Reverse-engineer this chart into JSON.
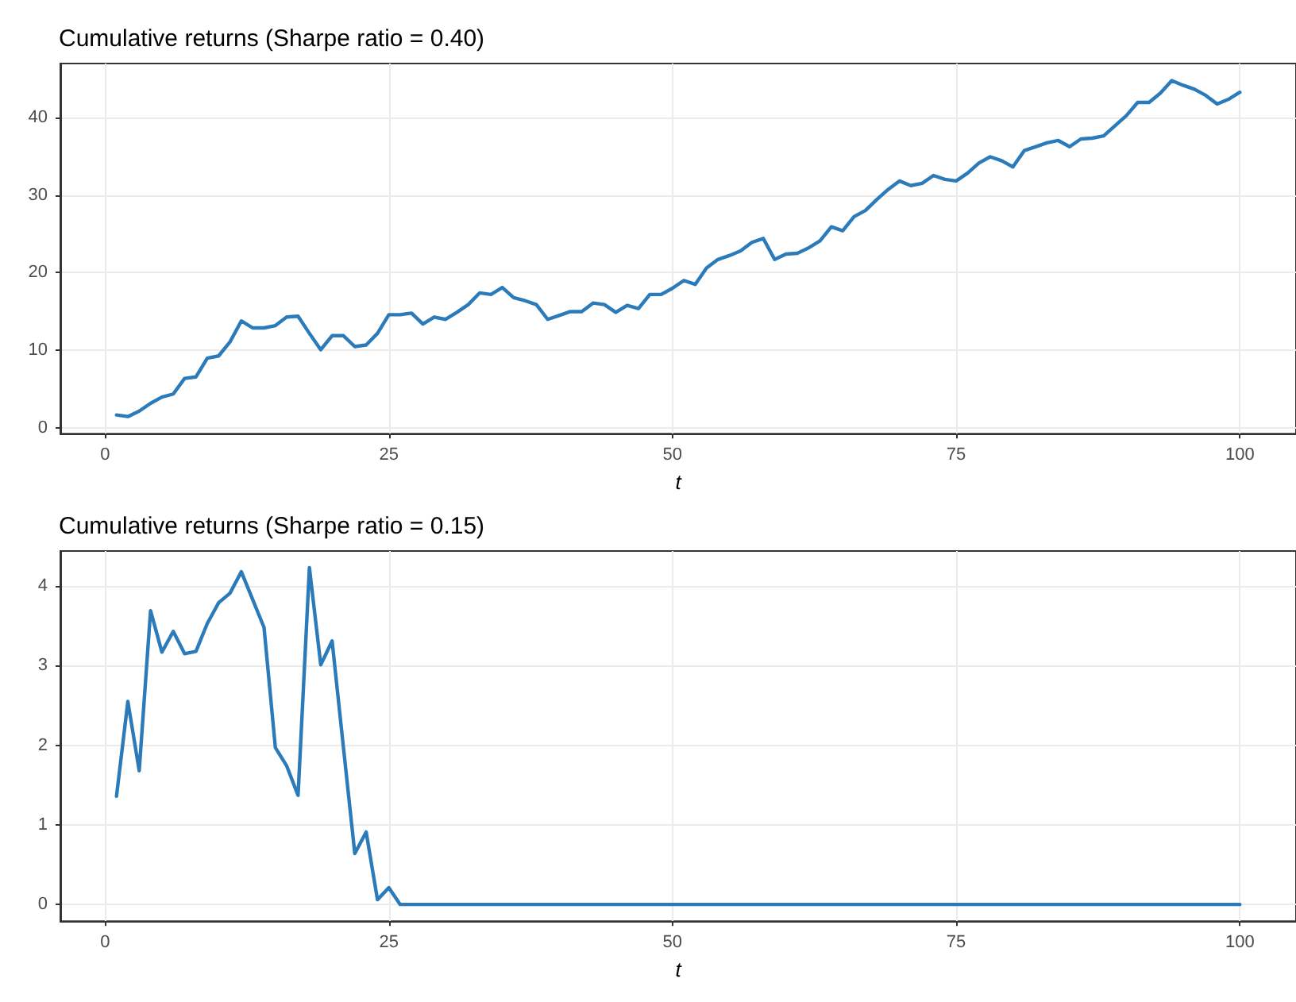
{
  "chart_data": [
    {
      "type": "line",
      "title": "Cumulative returns (Sharpe ratio = 0.40)",
      "xlabel": "t",
      "color": "#2b7bba",
      "grid": true,
      "marker": "none",
      "line_style": "solid",
      "xlim": [
        -3.95,
        104.95
      ],
      "xticks": [
        0,
        25,
        50,
        75,
        100
      ],
      "ylim": [
        -0.7,
        46.9
      ],
      "yticks": [
        0,
        10,
        20,
        30,
        40
      ],
      "x": [
        1,
        2,
        3,
        4,
        5,
        6,
        7,
        8,
        9,
        10,
        11,
        12,
        13,
        14,
        15,
        16,
        17,
        18,
        19,
        20,
        21,
        22,
        23,
        24,
        25,
        26,
        27,
        28,
        29,
        30,
        31,
        32,
        33,
        34,
        35,
        36,
        37,
        38,
        39,
        40,
        41,
        42,
        43,
        44,
        45,
        46,
        47,
        48,
        49,
        50,
        51,
        52,
        53,
        54,
        55,
        56,
        57,
        58,
        59,
        60,
        61,
        62,
        63,
        64,
        65,
        66,
        67,
        68,
        69,
        70,
        71,
        72,
        73,
        74,
        75,
        76,
        77,
        78,
        79,
        80,
        81,
        82,
        83,
        84,
        85,
        86,
        87,
        88,
        89,
        90,
        91,
        92,
        93,
        94,
        95,
        96,
        97,
        98,
        99,
        100
      ],
      "values": [
        1.7,
        1.5,
        2.2,
        3.2,
        4.0,
        4.4,
        6.4,
        6.6,
        9.0,
        9.3,
        11.1,
        13.8,
        12.9,
        12.9,
        13.2,
        14.3,
        14.4,
        12.2,
        10.1,
        11.9,
        11.9,
        10.5,
        10.7,
        12.2,
        14.6,
        14.6,
        14.8,
        13.4,
        14.3,
        14.0,
        14.9,
        15.9,
        17.4,
        17.2,
        18.1,
        16.8,
        16.4,
        15.9,
        14.0,
        14.5,
        15.0,
        15.0,
        16.1,
        15.9,
        14.9,
        15.8,
        15.4,
        17.2,
        17.2,
        18.0,
        19.0,
        18.5,
        20.6,
        21.7,
        22.2,
        22.8,
        23.9,
        24.4,
        21.7,
        22.4,
        22.5,
        23.2,
        24.1,
        25.9,
        25.4,
        27.2,
        28.0,
        29.4,
        30.7,
        31.8,
        31.2,
        31.5,
        32.5,
        32.0,
        31.8,
        32.8,
        34.1,
        34.9,
        34.4,
        33.6,
        35.7,
        36.2,
        36.7,
        37.0,
        36.2,
        37.2,
        37.3,
        37.6,
        38.9,
        40.2,
        41.9,
        41.9,
        43.1,
        44.7,
        44.1,
        43.6,
        42.8,
        41.7,
        42.3,
        43.2
      ]
    },
    {
      "type": "line",
      "title": "Cumulative returns (Sharpe ratio = 0.15)",
      "xlabel": "t",
      "color": "#2b7bba",
      "grid": true,
      "marker": "none",
      "line_style": "solid",
      "xlim": [
        -3.95,
        104.95
      ],
      "xticks": [
        0,
        25,
        50,
        75,
        100
      ],
      "ylim": [
        -0.21,
        4.44
      ],
      "yticks": [
        0,
        1,
        2,
        3,
        4
      ],
      "x": [
        1,
        2,
        3,
        4,
        5,
        6,
        7,
        8,
        9,
        10,
        11,
        12,
        13,
        14,
        15,
        16,
        17,
        18,
        19,
        20,
        21,
        22,
        23,
        24,
        25,
        26,
        27,
        28,
        29,
        30,
        31,
        32,
        33,
        34,
        35,
        36,
        37,
        38,
        39,
        40,
        41,
        42,
        43,
        44,
        45,
        46,
        47,
        48,
        49,
        50,
        51,
        52,
        53,
        54,
        55,
        56,
        57,
        58,
        59,
        60,
        61,
        62,
        63,
        64,
        65,
        66,
        67,
        68,
        69,
        70,
        71,
        72,
        73,
        74,
        75,
        76,
        77,
        78,
        79,
        80,
        81,
        82,
        83,
        84,
        85,
        86,
        87,
        88,
        89,
        90,
        91,
        92,
        93,
        94,
        95,
        96,
        97,
        98,
        99,
        100
      ],
      "values": [
        1.36,
        2.55,
        1.68,
        3.69,
        3.17,
        3.43,
        3.15,
        3.18,
        3.53,
        3.79,
        3.91,
        4.18,
        3.83,
        3.48,
        1.97,
        1.74,
        1.37,
        4.23,
        3.01,
        3.31,
        1.97,
        0.64,
        0.91,
        0.06,
        0.21,
        0,
        0,
        0,
        0,
        0,
        0,
        0,
        0,
        0,
        0,
        0,
        0,
        0,
        0,
        0,
        0,
        0,
        0,
        0,
        0,
        0,
        0,
        0,
        0,
        0,
        0,
        0,
        0,
        0,
        0,
        0,
        0,
        0,
        0,
        0,
        0,
        0,
        0,
        0,
        0,
        0,
        0,
        0,
        0,
        0,
        0,
        0,
        0,
        0,
        0,
        0,
        0,
        0,
        0,
        0,
        0,
        0,
        0,
        0,
        0,
        0,
        0,
        0,
        0,
        0,
        0,
        0,
        0,
        0,
        0,
        0,
        0,
        0,
        0,
        0
      ]
    }
  ]
}
